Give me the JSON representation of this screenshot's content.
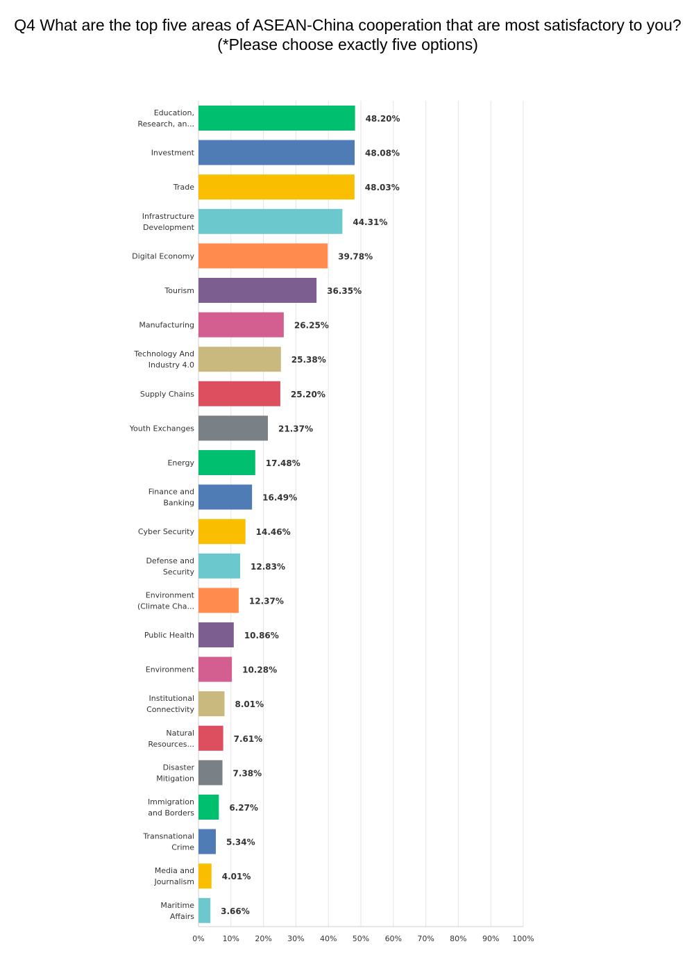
{
  "chart_data": {
    "type": "bar",
    "orientation": "horizontal",
    "title": "Q4 What are the top five areas of ASEAN-China cooperation that are most satisfactory to you? (*Please choose exactly five options)",
    "categories": [
      [
        "Education,",
        "Research, an..."
      ],
      [
        "Investment"
      ],
      [
        "Trade"
      ],
      [
        "Infrastructure",
        "Development"
      ],
      [
        "Digital Economy"
      ],
      [
        "Tourism"
      ],
      [
        "Manufacturing"
      ],
      [
        "Technology And",
        "Industry 4.0"
      ],
      [
        "Supply Chains"
      ],
      [
        "Youth Exchanges"
      ],
      [
        "Energy"
      ],
      [
        "Finance and",
        "Banking"
      ],
      [
        "Cyber Security"
      ],
      [
        "Defense and",
        "Security"
      ],
      [
        "Environment",
        "(Climate Cha..."
      ],
      [
        "Public Health"
      ],
      [
        "Environment"
      ],
      [
        "Institutional",
        "Connectivity"
      ],
      [
        "Natural",
        "Resources..."
      ],
      [
        "Disaster",
        "Mitigation"
      ],
      [
        "Immigration",
        "and Borders"
      ],
      [
        "Transnational",
        "Crime"
      ],
      [
        "Media and",
        "Journalism"
      ],
      [
        "Maritime",
        "Affairs"
      ]
    ],
    "values": [
      48.2,
      48.08,
      48.03,
      44.31,
      39.78,
      36.35,
      26.25,
      25.38,
      25.2,
      21.37,
      17.48,
      16.49,
      14.46,
      12.83,
      12.37,
      10.86,
      10.28,
      8.01,
      7.61,
      7.38,
      6.27,
      5.34,
      4.01,
      3.66
    ],
    "value_labels": [
      "48.20%",
      "48.08%",
      "48.03%",
      "44.31%",
      "39.78%",
      "36.35%",
      "26.25%",
      "25.38%",
      "25.20%",
      "21.37%",
      "17.48%",
      "16.49%",
      "14.46%",
      "12.83%",
      "12.37%",
      "10.86%",
      "10.28%",
      "8.01%",
      "7.61%",
      "7.38%",
      "6.27%",
      "5.34%",
      "4.01%",
      "3.66%"
    ],
    "xlim": [
      0,
      100
    ],
    "x_ticks": [
      "0%",
      "10%",
      "20%",
      "30%",
      "40%",
      "50%",
      "60%",
      "70%",
      "80%",
      "90%",
      "100%"
    ],
    "grid": true,
    "colors": [
      "#00bf6f",
      "#507cb6",
      "#f9be00",
      "#6bc8cd",
      "#ff8b4f",
      "#7d5e90",
      "#d25f90",
      "#c9b97e",
      "#dd4f5f",
      "#798187"
    ]
  }
}
